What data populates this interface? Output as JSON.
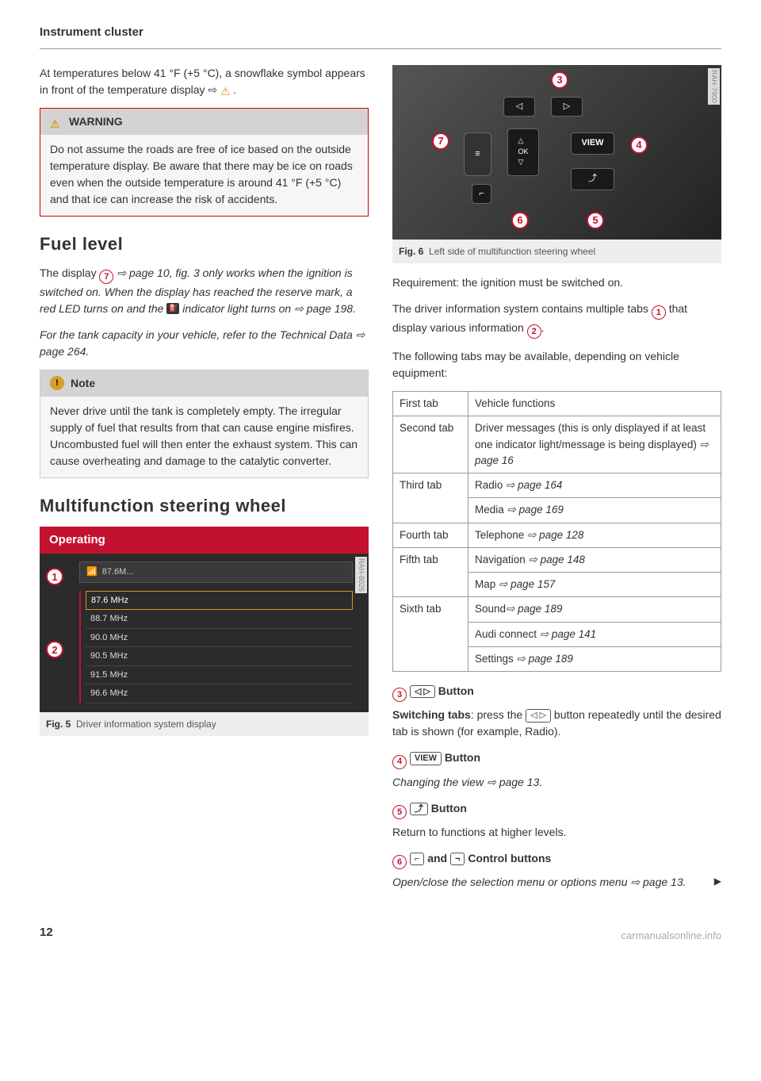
{
  "header": "Instrument cluster",
  "intro": "At temperatures below 41 °F (+5 °C), a snowflake symbol appears in front of the temperature display ⇨ ",
  "warning": {
    "title": "WARNING",
    "body": "Do not assume the roads are free of ice based on the outside temperature display. Be aware that there may be ice on roads even when the outside temperature is around 41 °F (+5 °C) and that ice can increase the risk of accidents."
  },
  "fuel": {
    "title": "Fuel level",
    "p1a": "The display ",
    "p1b": " ⇨ page 10, fig. 3 only works when the ignition is switched on. When the display has reached the reserve mark, a red LED turns on and the ",
    "p1c": " indicator light turns on ⇨ page 198.",
    "p2": "For the tank capacity in your vehicle, refer to the Technical Data ⇨ page 264."
  },
  "note": {
    "title": "Note",
    "body": "Never drive until the tank is completely empty. The irregular supply of fuel that results from that can cause engine misfires. Uncombusted fuel will then enter the exhaust system. This can cause overheating and damage to the catalytic converter."
  },
  "mfsw": {
    "title": "Multifunction steering wheel",
    "bar": "Operating"
  },
  "fig5": {
    "label": "Fig. 5",
    "caption": "Driver information system display",
    "side": "RAH-8026",
    "top": "87.6M...",
    "stations": [
      "87.6 MHz",
      "88.7 MHz",
      "90.0 MHz",
      "90.5 MHz",
      "91.5 MHz",
      "96.6 MHz"
    ]
  },
  "fig6": {
    "label": "Fig. 6",
    "caption": "Left side of multifunction steering wheel",
    "side": "RAH-7900",
    "view": "VIEW"
  },
  "req": "Requirement: the ignition must be switched on.",
  "dis": {
    "a": "The driver information system contains multiple tabs ",
    "b": " that display various information ",
    "c": "."
  },
  "avail": "The following tabs may be available, depending on vehicle equipment:",
  "table": {
    "rows": [
      [
        "First tab",
        "Vehicle functions"
      ],
      [
        "Second tab",
        "Driver messages (this is only displayed if at least one indicator light/message is being displayed) ⇨ page 16"
      ],
      [
        "Third tab",
        "Radio ⇨ page 164"
      ],
      [
        "",
        "Media ⇨ page 169"
      ],
      [
        "Fourth tab",
        "Telephone ⇨ page 128"
      ],
      [
        "Fifth tab",
        "Navigation ⇨ page 148"
      ],
      [
        "",
        "Map ⇨ page 157"
      ],
      [
        "Sixth tab",
        "Sound⇨ page 189"
      ],
      [
        "",
        "Audi connect ⇨ page 141"
      ],
      [
        "",
        "Settings ⇨ page 189"
      ]
    ]
  },
  "b3": {
    "head": "Button",
    "body_a": "Switching tabs",
    "body_b": ": press the ",
    "body_c": " button repeatedly until the desired tab is shown (for example, Radio)."
  },
  "b4": {
    "head": "Button",
    "body": "Changing the view ⇨ page 13.",
    "label": "VIEW"
  },
  "b5": {
    "head": "Button",
    "body": "Return to functions at higher levels."
  },
  "b6": {
    "head": "Control buttons",
    "body": "Open/close the selection menu or options menu ⇨ page 13."
  },
  "pagenum": "12",
  "footer": "carmanualsonline.info"
}
